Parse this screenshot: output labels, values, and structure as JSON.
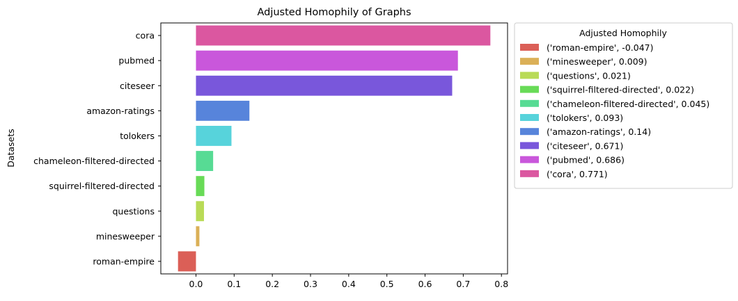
{
  "chart_data": {
    "type": "bar",
    "orientation": "horizontal",
    "title": "Adjusted Homophily of Graphs",
    "xlabel": "",
    "ylabel": "Datasets",
    "xlim": [
      -0.092,
      0.816
    ],
    "xticks": [
      0.0,
      0.1,
      0.2,
      0.3,
      0.4,
      0.5,
      0.6,
      0.7,
      0.8
    ],
    "xtick_labels": [
      "0.0",
      "0.1",
      "0.2",
      "0.3",
      "0.4",
      "0.5",
      "0.6",
      "0.7",
      "0.8"
    ],
    "categories": [
      "roman-empire",
      "minesweeper",
      "questions",
      "squirrel-filtered-directed",
      "chameleon-filtered-directed",
      "tolokers",
      "amazon-ratings",
      "citeseer",
      "pubmed",
      "cora"
    ],
    "values": [
      -0.047,
      0.009,
      0.021,
      0.022,
      0.045,
      0.093,
      0.14,
      0.671,
      0.686,
      0.771
    ],
    "colors": [
      "#db5f57",
      "#dbb057",
      "#b9db57",
      "#68db57",
      "#57db94",
      "#57d3db",
      "#5784db",
      "#7957db",
      "#c957db",
      "#db57a0"
    ],
    "grid": false,
    "legend": {
      "title": "Adjusted Homophily",
      "placement": "outside right, top",
      "entries": [
        "('roman-empire', -0.047)",
        "('minesweeper', 0.009)",
        "('questions', 0.021)",
        "('squirrel-filtered-directed', 0.022)",
        "('chameleon-filtered-directed', 0.045)",
        "('tolokers', 0.093)",
        "('amazon-ratings', 0.14)",
        "('citeseer', 0.671)",
        "('pubmed', 0.686)",
        "('cora', 0.771)"
      ]
    }
  }
}
